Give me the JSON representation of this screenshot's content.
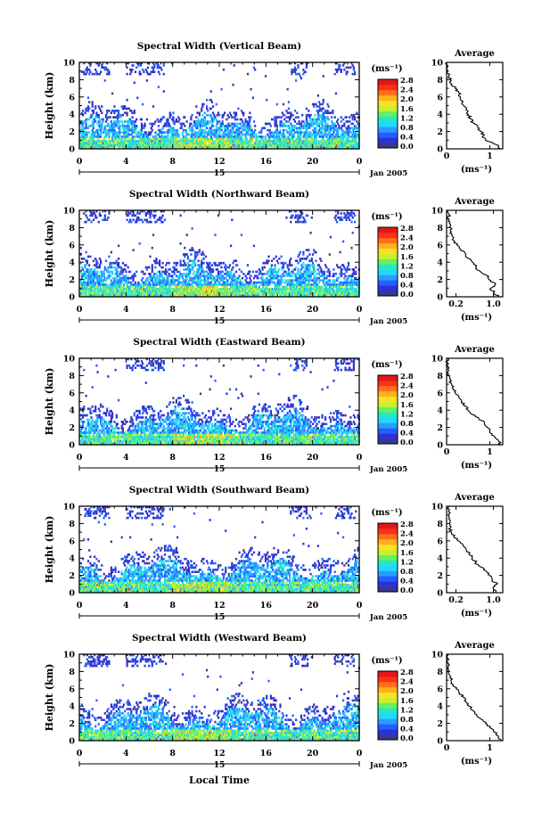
{
  "figure": {
    "shared_xlabel": "Local Time",
    "date_label": "Jan 2005",
    "day_label": "15",
    "ylabel": "Height (km)",
    "unit_label": "(ms⁻¹)",
    "avg_title": "Average",
    "avg_xlabel": "(ms⁻¹)",
    "colorbar_ticks": [
      "0.0",
      "0.4",
      "0.8",
      "1.2",
      "1.6",
      "2.0",
      "2.4",
      "2.8"
    ],
    "colorbar_colors": [
      "#38388c",
      "#3030d8",
      "#2060ff",
      "#2a9cff",
      "#22d8ff",
      "#22e8c8",
      "#66f066",
      "#c8f030",
      "#ffe020",
      "#ffb020",
      "#ff7018",
      "#ff3018",
      "#e01818"
    ]
  },
  "chart_data": [
    {
      "type": "heatmap",
      "title": "Spectral Width (Vertical Beam)",
      "x_ticks": [
        "0",
        "4",
        "8",
        "12",
        "16",
        "20",
        "0"
      ],
      "xlim": [
        0,
        24
      ],
      "y_ticks": [
        "0",
        "2",
        "4",
        "6",
        "8",
        "10"
      ],
      "ylim": [
        0,
        10
      ],
      "zlim": [
        0.0,
        2.8
      ],
      "average_profile": {
        "x_ticks": [
          "0",
          "1"
        ],
        "xlim": [
          0,
          1.3
        ],
        "height": [
          0,
          0.5,
          1,
          1.5,
          2,
          2.5,
          3,
          3.5,
          4,
          4.5,
          5,
          5.5,
          6,
          6.5,
          7,
          7.5,
          8,
          8.5,
          9,
          9.5,
          10
        ],
        "width": [
          1.25,
          1.15,
          0.9,
          0.85,
          0.8,
          0.72,
          0.62,
          0.55,
          0.5,
          0.45,
          0.4,
          0.38,
          0.32,
          0.28,
          0.2,
          0.12,
          0.08,
          0.05,
          0.03,
          0.02,
          0.0
        ]
      }
    },
    {
      "type": "heatmap",
      "title": "Spectral Width (Northward Beam)",
      "x_ticks": [
        "0",
        "4",
        "8",
        "12",
        "16",
        "20",
        "0"
      ],
      "xlim": [
        0,
        24
      ],
      "y_ticks": [
        "0",
        "2",
        "4",
        "6",
        "8",
        "10"
      ],
      "ylim": [
        0,
        10
      ],
      "zlim": [
        0.0,
        2.8
      ],
      "average_profile": {
        "x_ticks": [
          "0.2",
          "1.0"
        ],
        "xlim": [
          0.0,
          1.2
        ],
        "height": [
          0,
          0.5,
          1,
          1.5,
          2,
          2.5,
          3,
          3.5,
          4,
          4.5,
          5,
          5.5,
          6,
          6.5,
          7,
          7.5,
          8,
          8.5,
          9,
          9.5,
          10
        ],
        "width": [
          1.1,
          1.0,
          0.95,
          1.05,
          0.9,
          0.85,
          0.7,
          0.62,
          0.55,
          0.45,
          0.4,
          0.3,
          0.22,
          0.15,
          0.12,
          0.1,
          0.08,
          0.06,
          0.05,
          0.05,
          0.04
        ]
      }
    },
    {
      "type": "heatmap",
      "title": "Spectral Width (Eastward Beam)",
      "x_ticks": [
        "0",
        "4",
        "8",
        "12",
        "16",
        "20",
        "0"
      ],
      "xlim": [
        0,
        24
      ],
      "y_ticks": [
        "0",
        "2",
        "4",
        "6",
        "8",
        "10"
      ],
      "ylim": [
        0,
        10
      ],
      "zlim": [
        0.0,
        2.8
      ],
      "average_profile": {
        "x_ticks": [
          "0",
          "1"
        ],
        "xlim": [
          0,
          1.3
        ],
        "height": [
          0,
          0.5,
          1,
          1.5,
          2,
          2.5,
          3,
          3.5,
          4,
          4.5,
          5,
          5.5,
          6,
          6.5,
          7,
          7.5,
          8,
          8.5,
          9,
          9.5,
          10
        ],
        "width": [
          1.25,
          1.2,
          1.1,
          1.0,
          0.95,
          0.88,
          0.75,
          0.6,
          0.5,
          0.42,
          0.35,
          0.28,
          0.2,
          0.15,
          0.12,
          0.08,
          0.05,
          0.04,
          0.03,
          0.02,
          0.02
        ]
      }
    },
    {
      "type": "heatmap",
      "title": "Spectral Width (Southward Beam)",
      "x_ticks": [
        "0",
        "4",
        "8",
        "12",
        "16",
        "20",
        "0"
      ],
      "xlim": [
        0,
        24
      ],
      "y_ticks": [
        "0",
        "2",
        "4",
        "6",
        "8",
        "10"
      ],
      "ylim": [
        0,
        10
      ],
      "zlim": [
        0.0,
        2.8
      ],
      "average_profile": {
        "x_ticks": [
          "0.2",
          "1.0"
        ],
        "xlim": [
          0.0,
          1.2
        ],
        "height": [
          0,
          0.5,
          1,
          1.5,
          2,
          2.5,
          3,
          3.5,
          4,
          4.5,
          5,
          5.5,
          6,
          6.5,
          7,
          7.5,
          8,
          8.5,
          9,
          9.5,
          10
        ],
        "width": [
          1.05,
          1.0,
          1.08,
          0.98,
          0.92,
          0.85,
          0.72,
          0.62,
          0.55,
          0.48,
          0.42,
          0.35,
          0.25,
          0.15,
          0.1,
          0.08,
          0.06,
          0.05,
          0.05,
          0.05,
          0.04
        ]
      }
    },
    {
      "type": "heatmap",
      "title": "Spectral Width (Westward Beam)",
      "x_ticks": [
        "0",
        "4",
        "8",
        "12",
        "16",
        "20",
        "0"
      ],
      "xlim": [
        0,
        24
      ],
      "y_ticks": [
        "0",
        "2",
        "4",
        "6",
        "8",
        "10"
      ],
      "ylim": [
        0,
        10
      ],
      "zlim": [
        0.0,
        2.8
      ],
      "average_profile": {
        "x_ticks": [
          "0",
          "1"
        ],
        "xlim": [
          0,
          1.3
        ],
        "height": [
          0,
          0.5,
          1,
          1.5,
          2,
          2.5,
          3,
          3.5,
          4,
          4.5,
          5,
          5.5,
          6,
          6.5,
          7,
          7.5,
          8,
          8.5,
          9,
          9.5,
          10
        ],
        "width": [
          1.25,
          1.2,
          1.1,
          1.0,
          0.9,
          0.8,
          0.7,
          0.6,
          0.52,
          0.45,
          0.4,
          0.3,
          0.22,
          0.15,
          0.1,
          0.08,
          0.06,
          0.04,
          0.03,
          0.02,
          0.02
        ]
      }
    }
  ]
}
